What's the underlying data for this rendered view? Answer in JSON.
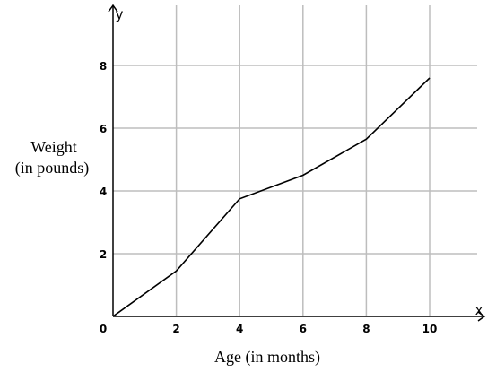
{
  "chart_data": {
    "type": "line",
    "xlabel": "Age (in months)",
    "ylabel": [
      "Weight",
      "(in pounds)"
    ],
    "x_axis_letter": "x",
    "y_axis_letter": "y",
    "x_ticks": [
      0,
      2,
      4,
      6,
      8,
      10
    ],
    "y_ticks": [
      2,
      4,
      6,
      8
    ],
    "xlim": [
      0,
      12
    ],
    "ylim": [
      0,
      10
    ],
    "grid": true,
    "series": [
      {
        "x": [
          0,
          2,
          4,
          6,
          8,
          10
        ],
        "y": [
          0,
          1.45,
          3.75,
          4.5,
          5.65,
          7.6
        ]
      }
    ]
  }
}
